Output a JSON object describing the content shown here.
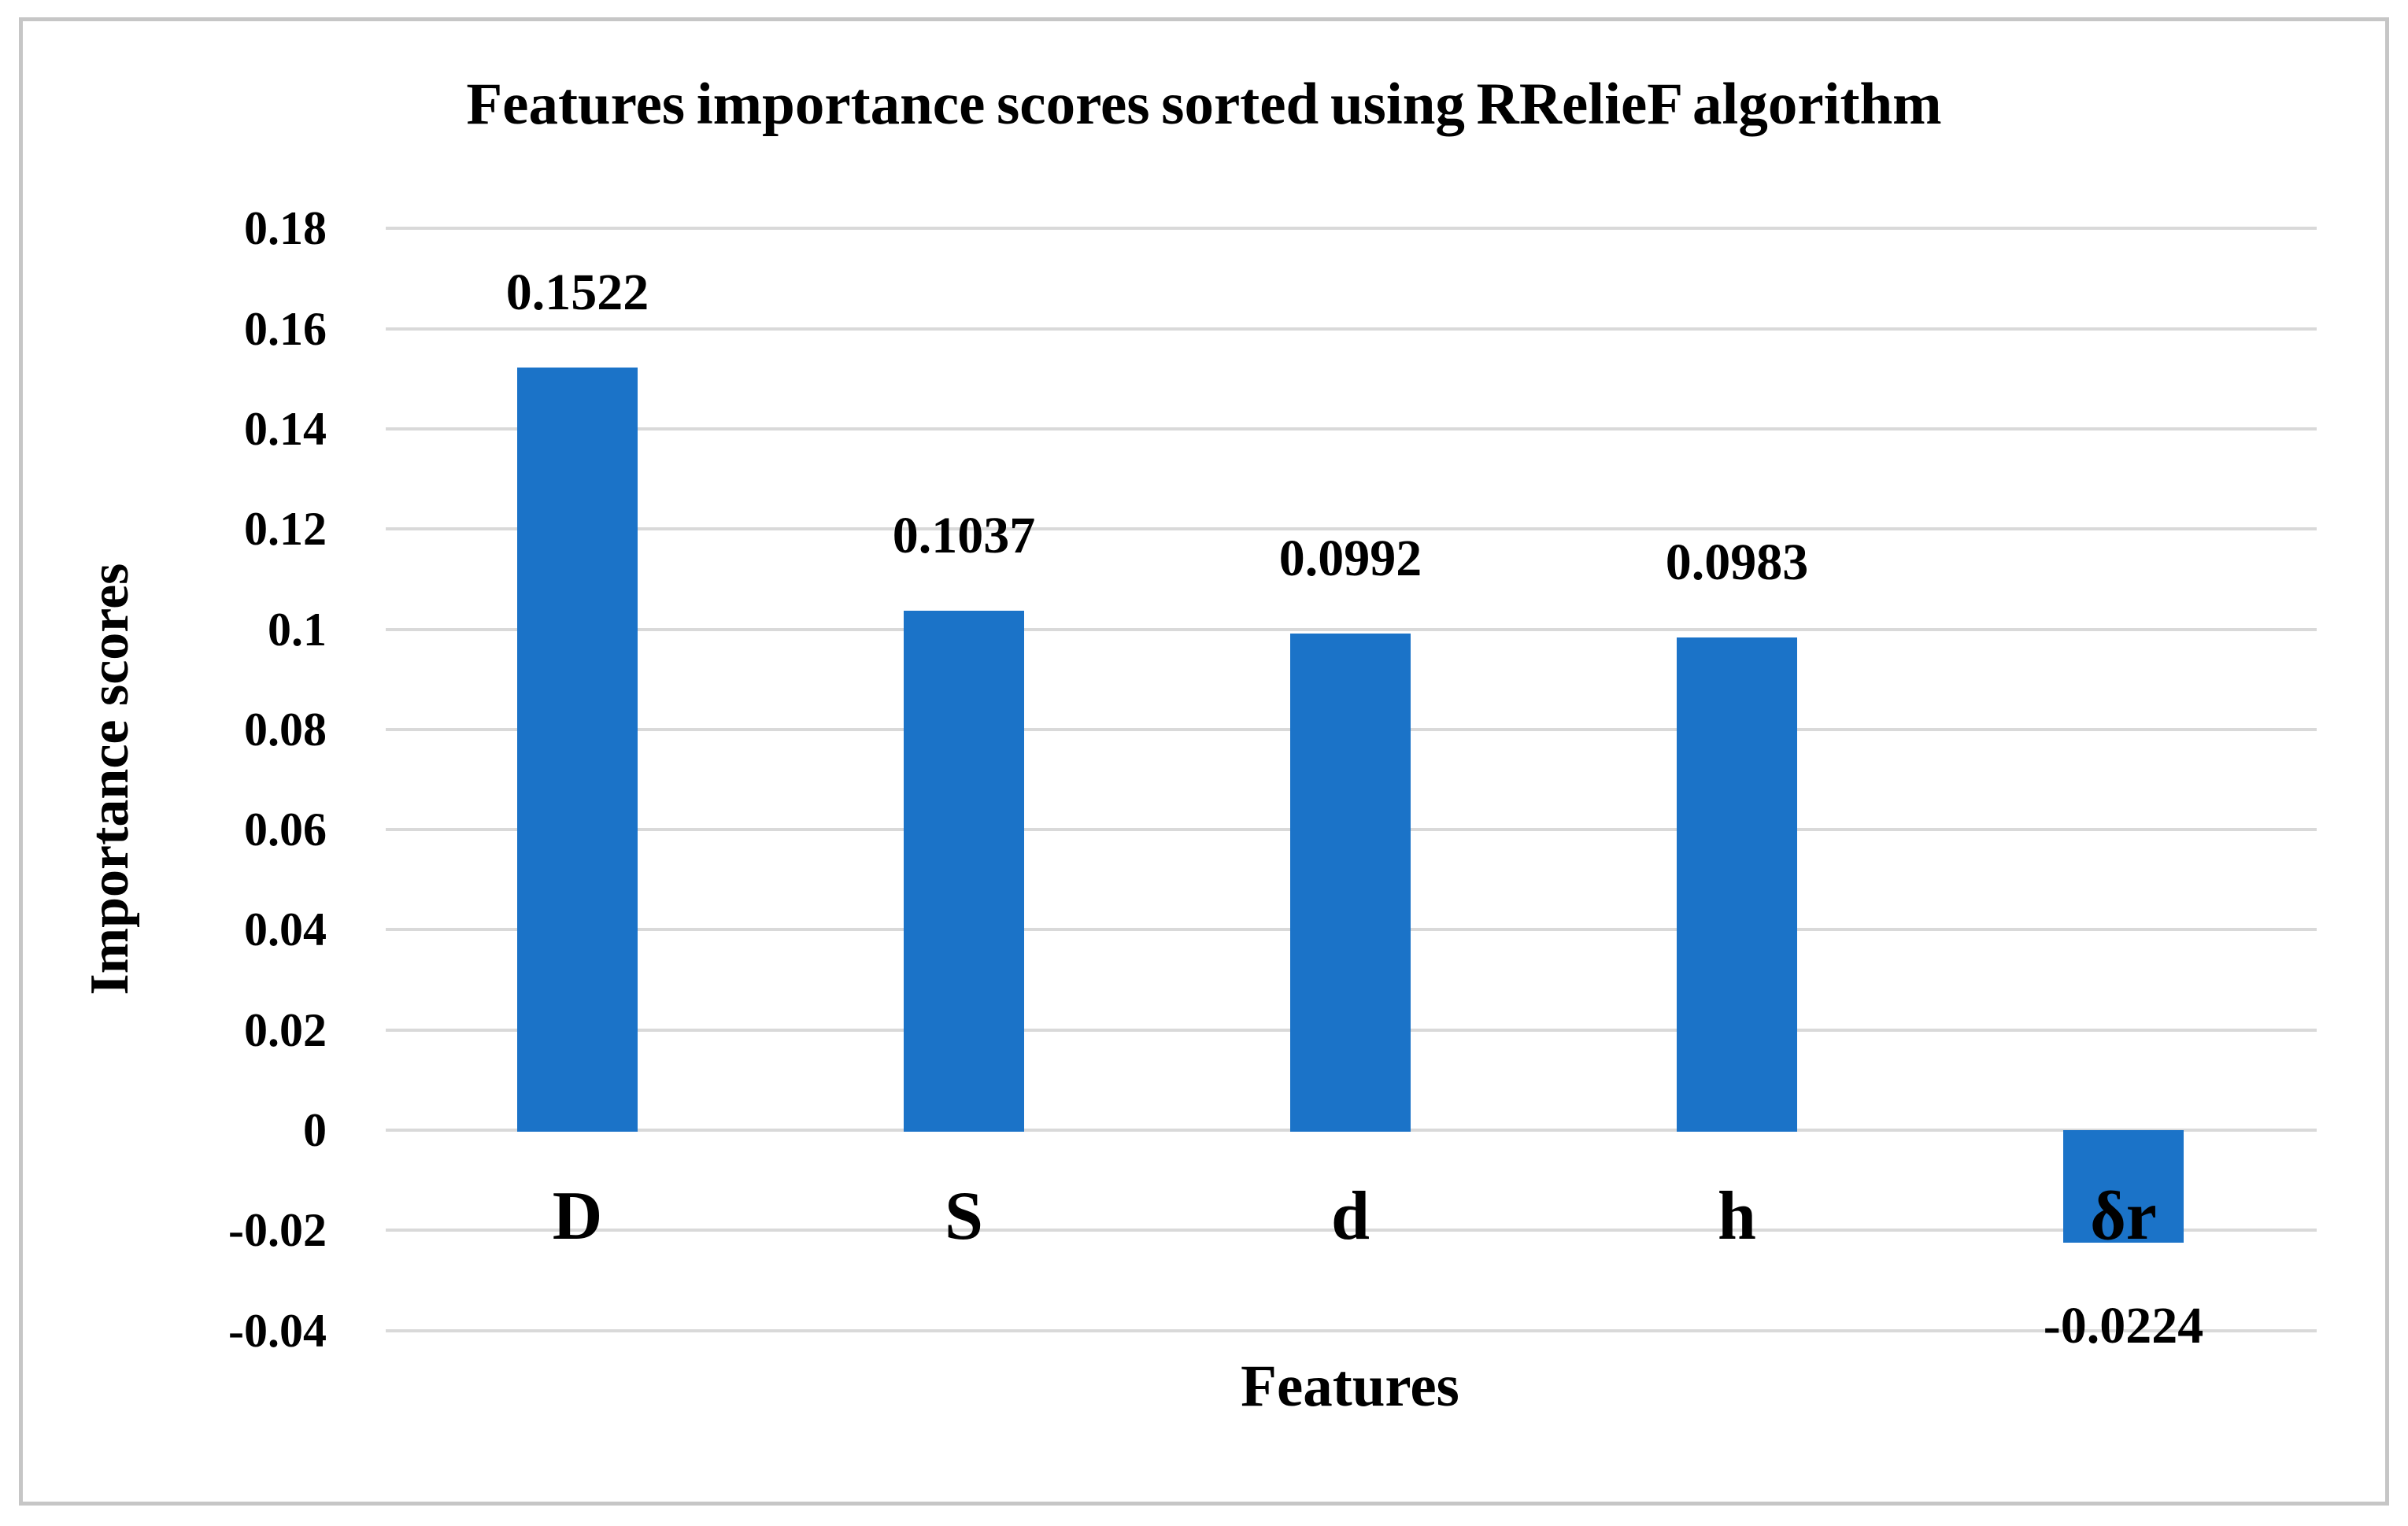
{
  "chart_data": {
    "type": "bar",
    "title": "Features importance scores sorted using RRelieF algorithm",
    "categories": [
      "D",
      "S",
      "d",
      "h",
      "δr"
    ],
    "values": [
      0.1522,
      0.1037,
      0.0992,
      0.0983,
      -0.0224
    ],
    "data_labels": [
      "0.1522",
      "0.1037",
      "0.0992",
      "0.0983",
      "-0.0224"
    ],
    "xlabel": "Features",
    "ylabel": "Importance scores",
    "ylim": [
      -0.04,
      0.18
    ],
    "ytick_interval": 0.02,
    "ytick_labels": [
      "0.18",
      "0.16",
      "0.14",
      "0.12",
      "0.1",
      "0.08",
      "0.06",
      "0.04",
      "0.02",
      "0",
      "-0.02",
      "-0.04"
    ],
    "ytick_values": [
      0.18,
      0.16,
      0.14,
      0.12,
      0.1,
      0.08,
      0.06,
      0.04,
      0.02,
      0,
      -0.02,
      -0.04
    ],
    "grid": true,
    "legend": false,
    "bar_color": "#1b73c8",
    "gridline_color": "#d9d9d9",
    "border_color": "#c6c6c6",
    "text_color": "#000000",
    "background_color": "#ffffff"
  }
}
